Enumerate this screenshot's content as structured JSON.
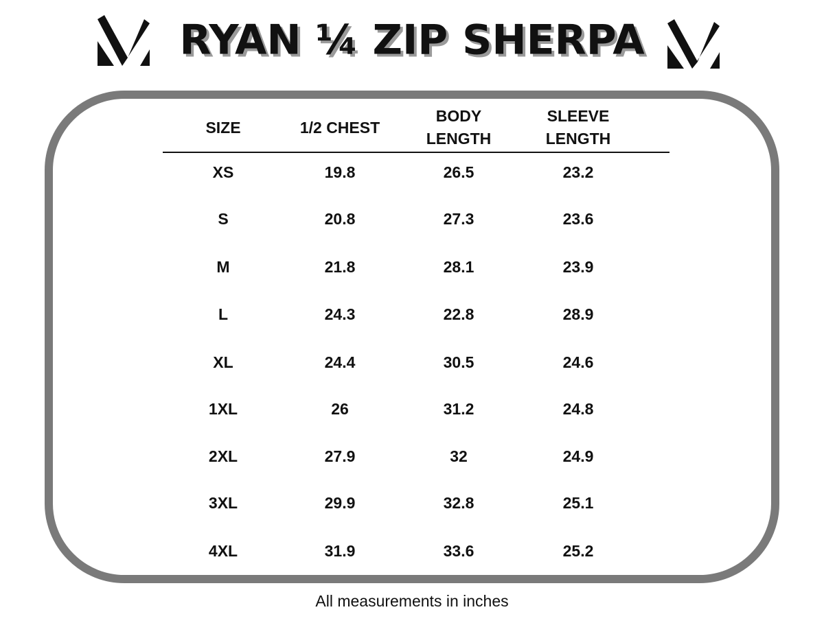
{
  "header": {
    "title": "RYAN ¼ ZIP SHERPA"
  },
  "table": {
    "columns": [
      [
        "SIZE"
      ],
      [
        "1/2 CHEST"
      ],
      [
        "BODY",
        "LENGTH"
      ],
      [
        "SLEEVE",
        "LENGTH"
      ]
    ],
    "rows": [
      [
        "XS",
        "19.8",
        "26.5",
        "23.2"
      ],
      [
        "S",
        "20.8",
        "27.3",
        "23.6"
      ],
      [
        "M",
        "21.8",
        "28.1",
        "23.9"
      ],
      [
        "L",
        "24.3",
        "22.8",
        "28.9"
      ],
      [
        "XL",
        "24.4",
        "30.5",
        "24.6"
      ],
      [
        "1XL",
        "26",
        "31.2",
        "24.8"
      ],
      [
        "2XL",
        "27.9",
        "32",
        "24.9"
      ],
      [
        "3XL",
        "29.9",
        "32.8",
        "25.1"
      ],
      [
        "4XL",
        "31.9",
        "33.6",
        "25.2"
      ]
    ]
  },
  "footer": {
    "note": "All measurements in inches"
  }
}
